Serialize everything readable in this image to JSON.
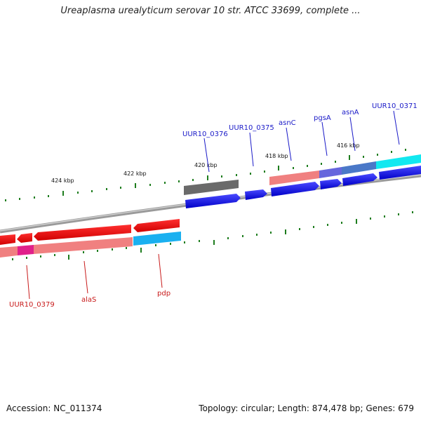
{
  "title": "Ureaplasma urealyticum serovar 10 str. ATCC 33699, complete ...",
  "footer": {
    "accession": "Accession: NC_011374",
    "summary": "Topology: circular; Length: 874,478 bp; Genes: 679"
  },
  "colors": {
    "backbone": "#8c8c8c",
    "tick": "#1e7d1e",
    "forward_gene": "#0000e6",
    "reverse_gene": "#e60000",
    "label_forward": "#1a1ac8",
    "label_reverse": "#c81a1a"
  },
  "ticks": [
    {
      "label": "424 kbp"
    },
    {
      "label": "422 kbp"
    },
    {
      "label": "420 kbp"
    },
    {
      "label": "418 kbp"
    },
    {
      "label": "416 kbp"
    }
  ],
  "genes_top": [
    {
      "name": "UUR10_0376"
    },
    {
      "name": "UUR10_0375"
    },
    {
      "name": "asnC"
    },
    {
      "name": "pgsA"
    },
    {
      "name": "asnA"
    },
    {
      "name": "UUR10_0371"
    }
  ],
  "genes_bottom": [
    {
      "name": "UUR10_0379"
    },
    {
      "name": "alaS"
    },
    {
      "name": "pdp"
    }
  ]
}
